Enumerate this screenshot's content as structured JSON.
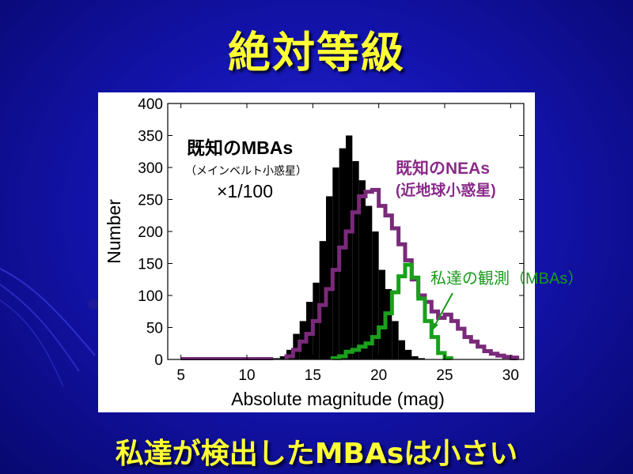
{
  "slide": {
    "title": "絶対等級",
    "caption": "私達が検出したMBAsは小さい"
  },
  "colors": {
    "background": "#1414b0",
    "title": "#ffff33",
    "mba_known": "#000000",
    "nea_known": "#7a2a7a",
    "our_obs": "#1aa01a"
  },
  "chart_data": {
    "type": "bar",
    "title": "",
    "xlabel": "Absolute magnitude (mag)",
    "ylabel": "Number",
    "xlim": [
      4,
      31
    ],
    "ylim": [
      0,
      400
    ],
    "xticks": [
      5,
      10,
      15,
      20,
      25,
      30
    ],
    "yticks": [
      0,
      50,
      100,
      150,
      200,
      250,
      300,
      350,
      400
    ],
    "bin_width": 0.5,
    "grid": false,
    "series": [
      {
        "name": "既知のMBAs",
        "sublabel": "（メインベルト小惑星）",
        "scale_note": "×1/100",
        "style": "filled-histogram",
        "x_start": 12.0,
        "values": [
          2,
          5,
          15,
          40,
          60,
          90,
          120,
          185,
          255,
          300,
          330,
          350,
          310,
          280,
          240,
          200,
          140,
          110,
          60,
          30,
          15,
          5,
          2
        ]
      },
      {
        "name": "既知のNEAs",
        "sublabel": "(近地球小惑星)",
        "style": "step-outline",
        "x_start": 13.0,
        "values": [
          5,
          15,
          28,
          40,
          60,
          85,
          110,
          140,
          175,
          200,
          230,
          255,
          262,
          265,
          240,
          225,
          205,
          180,
          155,
          125,
          100,
          90,
          75,
          65,
          70,
          60,
          48,
          35,
          28,
          20,
          13,
          9,
          6,
          4,
          3
        ]
      },
      {
        "name": "私達の観測（MBAs）",
        "style": "step-outline",
        "x_start": 16.5,
        "values": [
          2,
          5,
          12,
          15,
          20,
          25,
          35,
          50,
          72,
          105,
          130,
          148,
          128,
          95,
          60,
          35,
          10,
          2
        ]
      }
    ]
  }
}
